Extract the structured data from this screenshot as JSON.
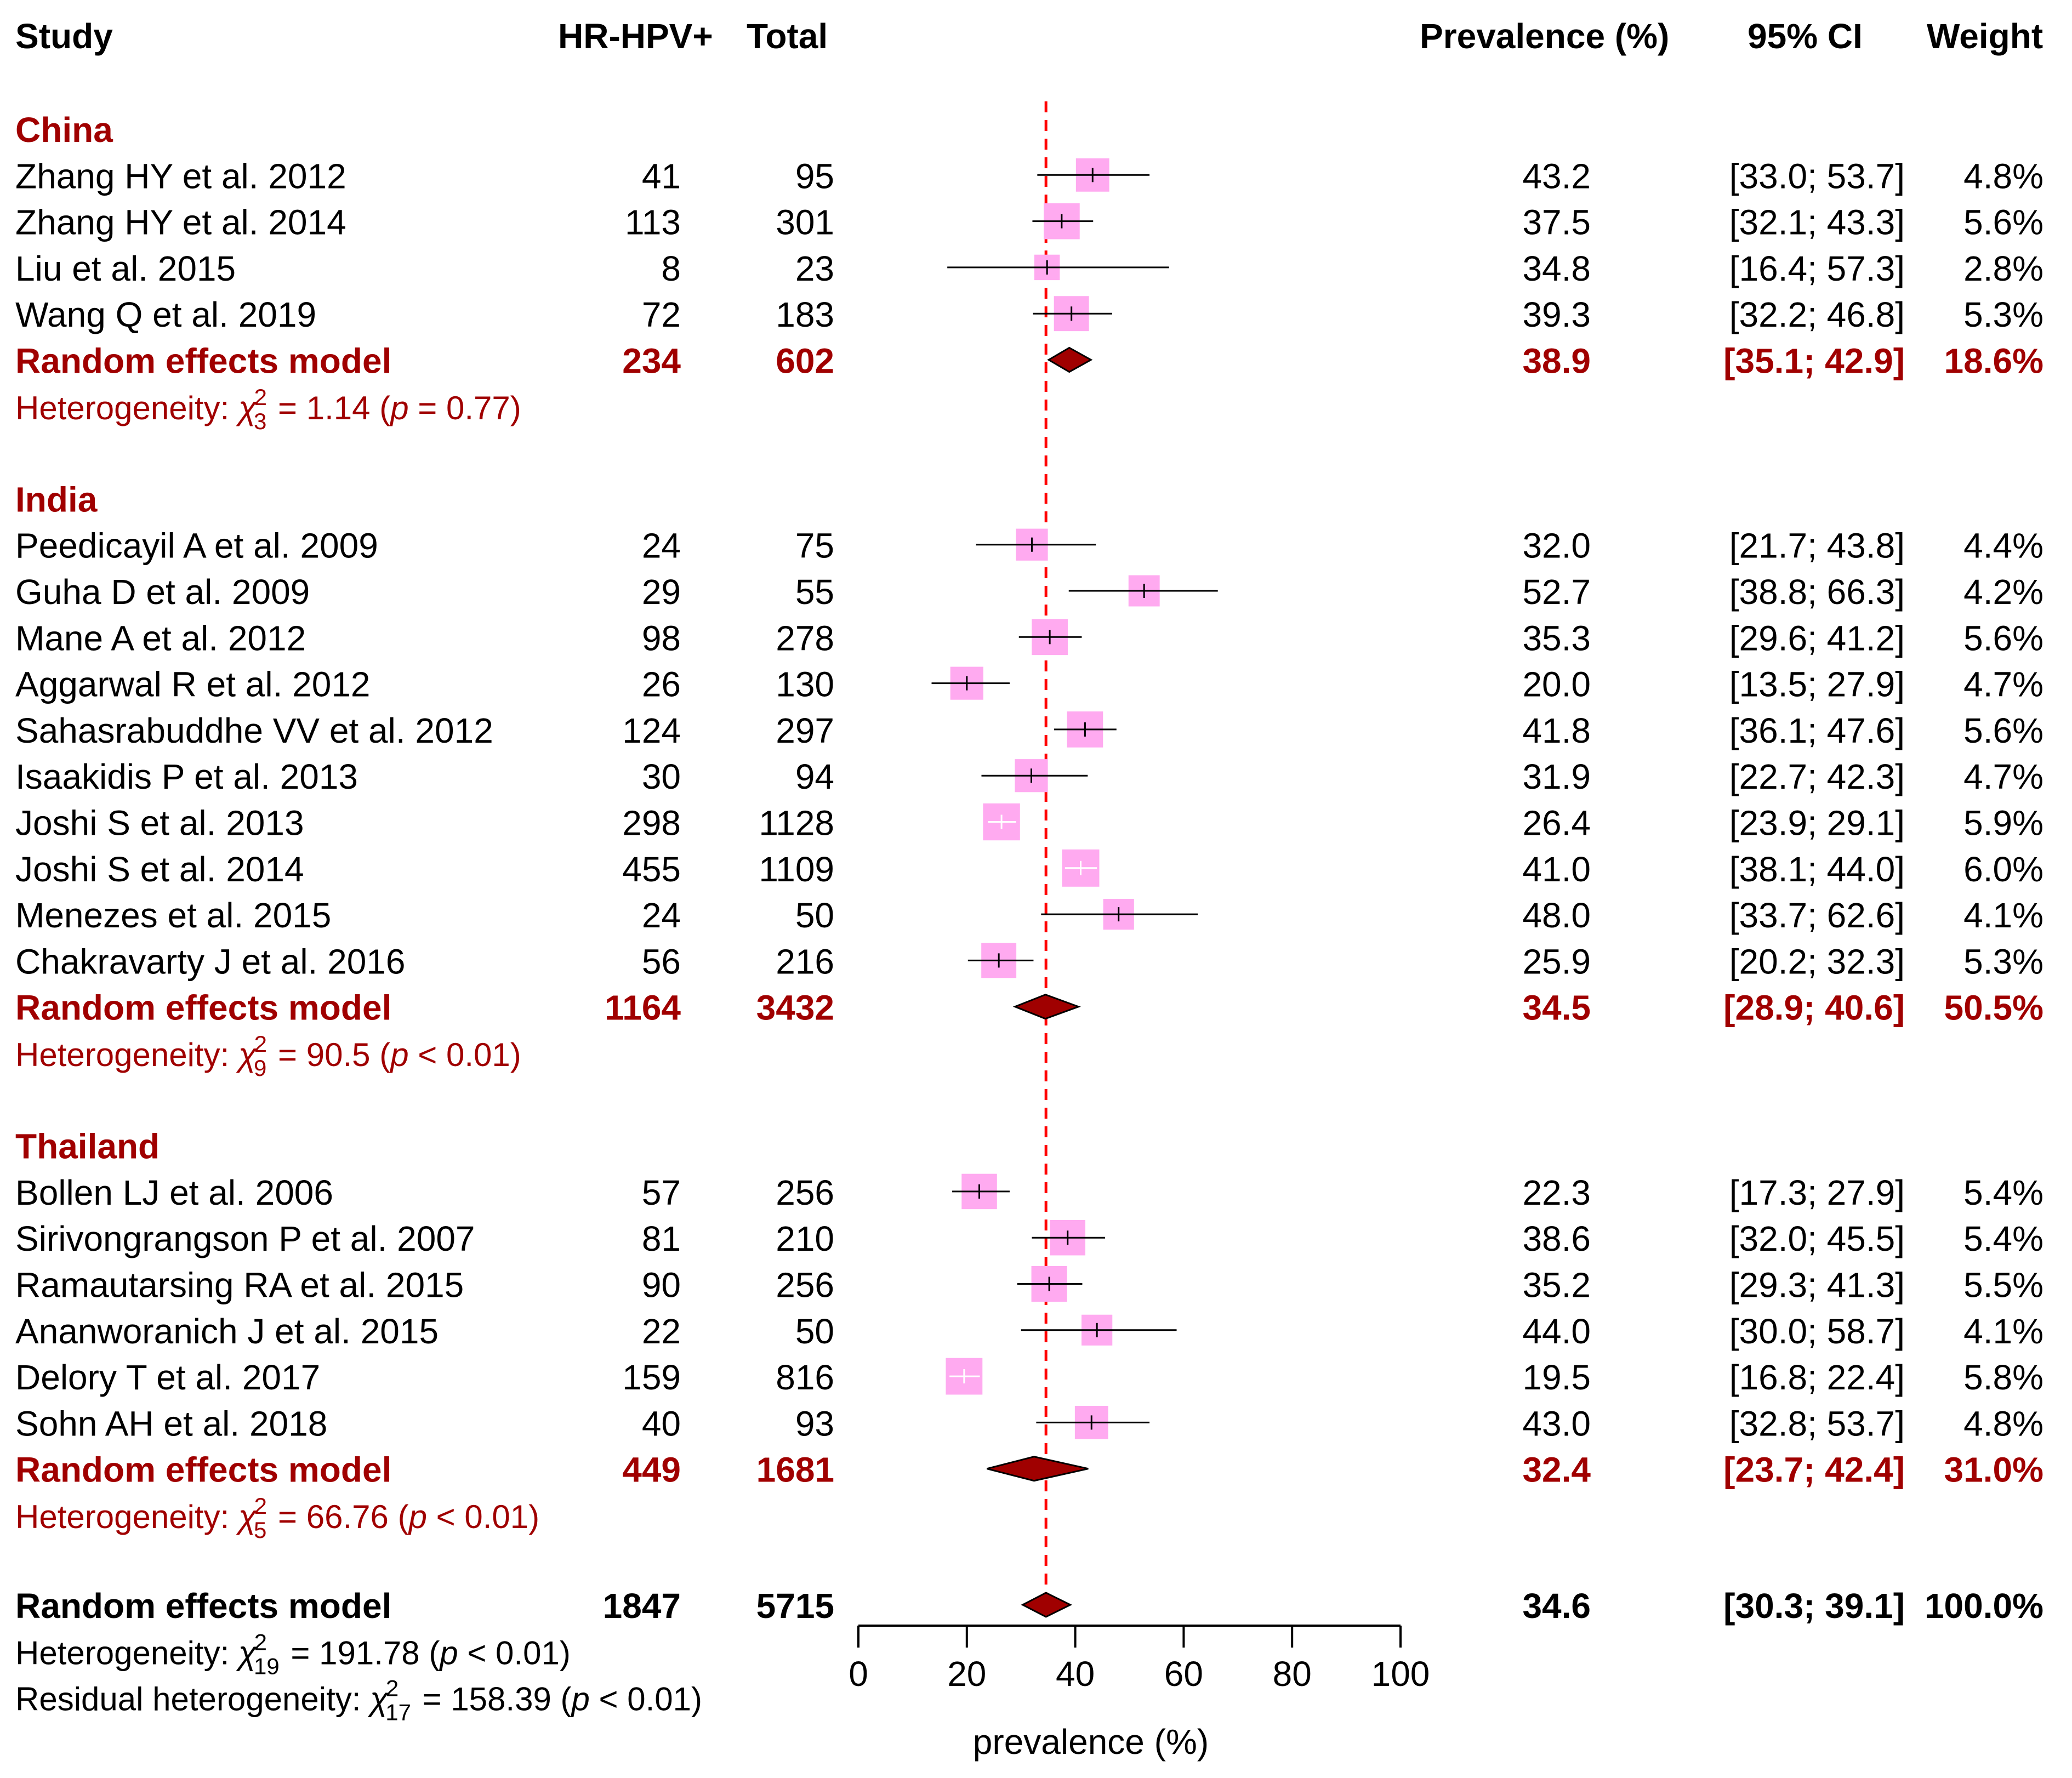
{
  "chart_data": {
    "type": "forest",
    "headers": {
      "study": "Study",
      "events": "HR-HPV+",
      "total": "Total",
      "prevalence": "Prevalence (%)",
      "ci": "95% CI",
      "weight": "Weight"
    },
    "xlabel": "prevalence (%)",
    "xlim": [
      0,
      100
    ],
    "xticks": [
      "0",
      "20",
      "40",
      "60",
      "80",
      "100"
    ],
    "reference_line": 34.6,
    "colors": {
      "accent": "#a00000",
      "box": "#ffaaf0",
      "diamond": "#a00000",
      "refline": "#ff0000",
      "text": "#000000"
    },
    "groups": [
      {
        "name": "China",
        "studies": [
          {
            "label": "Zhang HY et al. 2012",
            "events": "41",
            "total": "95",
            "est": 43.2,
            "lo": 33.0,
            "hi": 53.7,
            "est_text": "43.2",
            "ci_text": "[33.0; 53.7]",
            "weight": "4.8%"
          },
          {
            "label": "Zhang HY et al. 2014",
            "events": "113",
            "total": "301",
            "est": 37.5,
            "lo": 32.1,
            "hi": 43.3,
            "est_text": "37.5",
            "ci_text": "[32.1; 43.3]",
            "weight": "5.6%"
          },
          {
            "label": "Liu et al. 2015",
            "events": "8",
            "total": "23",
            "est": 34.8,
            "lo": 16.4,
            "hi": 57.3,
            "est_text": "34.8",
            "ci_text": "[16.4; 57.3]",
            "weight": "2.8%"
          },
          {
            "label": "Wang Q et al. 2019",
            "events": "72",
            "total": "183",
            "est": 39.3,
            "lo": 32.2,
            "hi": 46.8,
            "est_text": "39.3",
            "ci_text": "[32.2; 46.8]",
            "weight": "5.3%"
          }
        ],
        "summary": {
          "label": "Random effects model",
          "events": "234",
          "total": "602",
          "est": 38.9,
          "lo": 35.1,
          "hi": 42.9,
          "est_text": "38.9",
          "ci_text": "[35.1; 42.9]",
          "weight": "18.6%"
        },
        "heterogeneity": {
          "prefix": "Heterogeneity: ",
          "chi": "χ",
          "sup": "2",
          "df": "3",
          "stat": " = 1.14 (",
          "p": "p",
          "pval": " = 0.77)"
        }
      },
      {
        "name": "India",
        "studies": [
          {
            "label": "Peedicayil A et al. 2009",
            "events": "24",
            "total": "75",
            "est": 32.0,
            "lo": 21.7,
            "hi": 43.8,
            "est_text": "32.0",
            "ci_text": "[21.7; 43.8]",
            "weight": "4.4%"
          },
          {
            "label": "Guha D et al. 2009",
            "events": "29",
            "total": "55",
            "est": 52.7,
            "lo": 38.8,
            "hi": 66.3,
            "est_text": "52.7",
            "ci_text": "[38.8; 66.3]",
            "weight": "4.2%"
          },
          {
            "label": "Mane A et al. 2012",
            "events": "98",
            "total": "278",
            "est": 35.3,
            "lo": 29.6,
            "hi": 41.2,
            "est_text": "35.3",
            "ci_text": "[29.6; 41.2]",
            "weight": "5.6%"
          },
          {
            "label": "Aggarwal R et al. 2012",
            "events": "26",
            "total": "130",
            "est": 20.0,
            "lo": 13.5,
            "hi": 27.9,
            "est_text": "20.0",
            "ci_text": "[13.5; 27.9]",
            "weight": "4.7%"
          },
          {
            "label": "Sahasrabuddhe VV et al. 2012",
            "events": "124",
            "total": "297",
            "est": 41.8,
            "lo": 36.1,
            "hi": 47.6,
            "est_text": "41.8",
            "ci_text": "[36.1; 47.6]",
            "weight": "5.6%"
          },
          {
            "label": "Isaakidis P et al. 2013",
            "events": "30",
            "total": "94",
            "est": 31.9,
            "lo": 22.7,
            "hi": 42.3,
            "est_text": "31.9",
            "ci_text": "[22.7; 42.3]",
            "weight": "4.7%"
          },
          {
            "label": "Joshi S et al. 2013",
            "events": "298",
            "total": "1128",
            "est": 26.4,
            "lo": 23.9,
            "hi": 29.1,
            "est_text": "26.4",
            "ci_text": "[23.9; 29.1]",
            "weight": "5.9%"
          },
          {
            "label": "Joshi S et al. 2014",
            "events": "455",
            "total": "1109",
            "est": 41.0,
            "lo": 38.1,
            "hi": 44.0,
            "est_text": "41.0",
            "ci_text": "[38.1; 44.0]",
            "weight": "6.0%"
          },
          {
            "label": "Menezes et al. 2015",
            "events": "24",
            "total": "50",
            "est": 48.0,
            "lo": 33.7,
            "hi": 62.6,
            "est_text": "48.0",
            "ci_text": "[33.7; 62.6]",
            "weight": "4.1%"
          },
          {
            "label": "Chakravarty J et al. 2016",
            "events": "56",
            "total": "216",
            "est": 25.9,
            "lo": 20.2,
            "hi": 32.3,
            "est_text": "25.9",
            "ci_text": "[20.2; 32.3]",
            "weight": "5.3%"
          }
        ],
        "summary": {
          "label": "Random effects model",
          "events": "1164",
          "total": "3432",
          "est": 34.5,
          "lo": 28.9,
          "hi": 40.6,
          "est_text": "34.5",
          "ci_text": "[28.9; 40.6]",
          "weight": "50.5%"
        },
        "heterogeneity": {
          "prefix": "Heterogeneity: ",
          "chi": "χ",
          "sup": "2",
          "df": "9",
          "stat": " = 90.5 (",
          "p": "p",
          "pval": " < 0.01)"
        }
      },
      {
        "name": "Thailand",
        "studies": [
          {
            "label": "Bollen LJ et al. 2006",
            "events": "57",
            "total": "256",
            "est": 22.3,
            "lo": 17.3,
            "hi": 27.9,
            "est_text": "22.3",
            "ci_text": "[17.3; 27.9]",
            "weight": "5.4%"
          },
          {
            "label": "Sirivongrangson P et al. 2007",
            "events": "81",
            "total": "210",
            "est": 38.6,
            "lo": 32.0,
            "hi": 45.5,
            "est_text": "38.6",
            "ci_text": "[32.0; 45.5]",
            "weight": "5.4%"
          },
          {
            "label": "Ramautarsing RA et al. 2015",
            "events": "90",
            "total": "256",
            "est": 35.2,
            "lo": 29.3,
            "hi": 41.3,
            "est_text": "35.2",
            "ci_text": "[29.3; 41.3]",
            "weight": "5.5%"
          },
          {
            "label": "Ananworanich J et al. 2015",
            "events": "22",
            "total": "50",
            "est": 44.0,
            "lo": 30.0,
            "hi": 58.7,
            "est_text": "44.0",
            "ci_text": "[30.0; 58.7]",
            "weight": "4.1%"
          },
          {
            "label": "Delory T et al. 2017",
            "events": "159",
            "total": "816",
            "est": 19.5,
            "lo": 16.8,
            "hi": 22.4,
            "est_text": "19.5",
            "ci_text": "[16.8; 22.4]",
            "weight": "5.8%"
          },
          {
            "label": "Sohn AH et al. 2018",
            "events": "40",
            "total": "93",
            "est": 43.0,
            "lo": 32.8,
            "hi": 53.7,
            "est_text": "43.0",
            "ci_text": "[32.8; 53.7]",
            "weight": "4.8%"
          }
        ],
        "summary": {
          "label": "Random effects model",
          "events": "449",
          "total": "1681",
          "est": 32.4,
          "lo": 23.7,
          "hi": 42.4,
          "est_text": "32.4",
          "ci_text": "[23.7; 42.4]",
          "weight": "31.0%"
        },
        "heterogeneity": {
          "prefix": "Heterogeneity: ",
          "chi": "χ",
          "sup": "2",
          "df": "5",
          "stat": " = 66.76 (",
          "p": "p",
          "pval": " < 0.01)"
        }
      }
    ],
    "overall": {
      "label": "Random effects model",
      "events": "1847",
      "total": "5715",
      "est": 34.6,
      "lo": 30.3,
      "hi": 39.1,
      "est_text": "34.6",
      "ci_text": "[30.3; 39.1]",
      "weight": "100.0%",
      "heterogeneity": {
        "prefix": "Heterogeneity: ",
        "chi": "χ",
        "sup": "2",
        "df": "19",
        "stat": " = 191.78 (",
        "p": "p",
        "pval": " < 0.01)"
      },
      "residual": {
        "prefix": "Residual heterogeneity: ",
        "chi": "χ",
        "sup": "2",
        "df": "17",
        "stat": " = 158.39 (",
        "p": "p",
        "pval": " < 0.01)"
      }
    }
  }
}
